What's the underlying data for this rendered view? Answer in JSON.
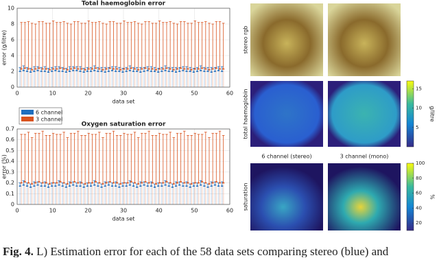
{
  "chart_data": [
    {
      "type": "errorbar",
      "title": "Total haemoglobin error",
      "x_label": "data set",
      "y_label": "error (g/litre)",
      "x": [
        1,
        2,
        3,
        4,
        5,
        6,
        7,
        8,
        9,
        10,
        11,
        12,
        13,
        14,
        15,
        16,
        17,
        18,
        19,
        20,
        21,
        22,
        23,
        24,
        25,
        26,
        27,
        28,
        29,
        30,
        31,
        32,
        33,
        34,
        35,
        36,
        37,
        38,
        39,
        40,
        41,
        42,
        43,
        44,
        45,
        46,
        47,
        48,
        49,
        50,
        51,
        52,
        53,
        54,
        55,
        56,
        57,
        58
      ],
      "xlim": [
        0,
        60
      ],
      "xticks": [
        0,
        10,
        20,
        30,
        40,
        50,
        60
      ],
      "ylim": [
        0,
        10
      ],
      "yticks": [
        0,
        2,
        4,
        6,
        8,
        10
      ],
      "grid": true,
      "legend": "below",
      "series": [
        {
          "name": "6 channel",
          "color": "#1f6fbf",
          "values": [
            2.0,
            2.1,
            2.0,
            1.9,
            2.0,
            2.1,
            2.0,
            2.0,
            1.9,
            2.0,
            2.1,
            2.0,
            2.0,
            1.9,
            2.0,
            2.1,
            2.1,
            2.0,
            1.9,
            2.0,
            2.0,
            2.1,
            2.0,
            2.0,
            1.9,
            2.0,
            2.1,
            2.0,
            2.0,
            1.9,
            2.0,
            2.1,
            2.0,
            2.0,
            1.9,
            2.0,
            2.1,
            2.0,
            2.0,
            1.9,
            2.0,
            2.1,
            2.0,
            2.0,
            1.9,
            2.0,
            2.1,
            2.0,
            2.0,
            1.9,
            2.0,
            2.1,
            2.0,
            2.0,
            1.9,
            2.0,
            2.1,
            2.0
          ],
          "errors": [
            0.5,
            0.6,
            0.5,
            0.5,
            0.6,
            0.5,
            0.5,
            0.6,
            0.5,
            0.5,
            0.5,
            0.6,
            0.5,
            0.5,
            0.6,
            0.5,
            0.5,
            0.6,
            0.5,
            0.5,
            0.5,
            0.6,
            0.5,
            0.5,
            0.6,
            0.5,
            0.5,
            0.6,
            0.5,
            0.5,
            0.5,
            0.6,
            0.5,
            0.5,
            0.6,
            0.5,
            0.5,
            0.6,
            0.5,
            0.5,
            0.5,
            0.6,
            0.5,
            0.5,
            0.6,
            0.5,
            0.5,
            0.6,
            0.5,
            0.5,
            0.5,
            0.6,
            0.5,
            0.5,
            0.6,
            0.5,
            0.5,
            0.6
          ]
        },
        {
          "name": "3 channel",
          "color": "#d9531e",
          "values": [
            2.3,
            2.4,
            2.3,
            2.2,
            2.3,
            2.4,
            2.3,
            2.3,
            2.2,
            2.3,
            2.3,
            2.4,
            2.3,
            2.2,
            2.3,
            2.4,
            2.3,
            2.3,
            2.2,
            2.3,
            2.3,
            2.4,
            2.3,
            2.2,
            2.3,
            2.4,
            2.3,
            2.3,
            2.2,
            2.3,
            2.3,
            2.4,
            2.3,
            2.2,
            2.3,
            2.4,
            2.3,
            2.3,
            2.2,
            2.3,
            2.3,
            2.4,
            2.3,
            2.2,
            2.3,
            2.4,
            2.3,
            2.3,
            2.2,
            2.3,
            2.3,
            2.4,
            2.3,
            2.2,
            2.3,
            2.4,
            2.3,
            2.3
          ],
          "errors": [
            5.9,
            5.8,
            6.0,
            5.9,
            5.7,
            5.9,
            6.0,
            5.8,
            5.9,
            6.1,
            5.9,
            5.8,
            6.0,
            5.9,
            5.7,
            5.9,
            6.0,
            5.8,
            5.9,
            6.1,
            5.9,
            5.8,
            6.0,
            5.9,
            5.7,
            5.9,
            6.0,
            5.8,
            5.9,
            6.1,
            5.9,
            5.8,
            6.0,
            5.9,
            5.7,
            5.9,
            6.0,
            5.8,
            5.9,
            6.1,
            5.9,
            5.8,
            6.0,
            5.9,
            5.7,
            5.9,
            6.0,
            5.8,
            5.9,
            6.1,
            5.9,
            5.8,
            6.0,
            5.9,
            5.7,
            5.9,
            6.0,
            5.8
          ]
        }
      ]
    },
    {
      "type": "errorbar",
      "title": "Oxygen saturation error",
      "x_label": "data set",
      "y_label": "error (%)",
      "x": [
        1,
        2,
        3,
        4,
        5,
        6,
        7,
        8,
        9,
        10,
        11,
        12,
        13,
        14,
        15,
        16,
        17,
        18,
        19,
        20,
        21,
        22,
        23,
        24,
        25,
        26,
        27,
        28,
        29,
        30,
        31,
        32,
        33,
        34,
        35,
        36,
        37,
        38,
        39,
        40,
        41,
        42,
        43,
        44,
        45,
        46,
        47,
        48,
        49,
        50,
        51,
        52,
        53,
        54,
        55,
        56,
        57,
        58
      ],
      "xlim": [
        0,
        60
      ],
      "xticks": [
        0,
        10,
        20,
        30,
        40,
        50,
        60
      ],
      "ylim": [
        0,
        0.7
      ],
      "yticks": [
        0,
        0.1,
        0.2,
        0.3,
        0.4,
        0.5,
        0.6,
        0.7
      ],
      "grid": true,
      "series": [
        {
          "color": "#1f6fbf",
          "values": [
            0.17,
            0.18,
            0.17,
            0.16,
            0.17,
            0.18,
            0.17,
            0.17,
            0.16,
            0.17,
            0.17,
            0.18,
            0.17,
            0.16,
            0.17,
            0.18,
            0.17,
            0.17,
            0.16,
            0.17,
            0.17,
            0.18,
            0.17,
            0.16,
            0.17,
            0.18,
            0.17,
            0.17,
            0.16,
            0.17,
            0.17,
            0.18,
            0.17,
            0.16,
            0.17,
            0.18,
            0.17,
            0.17,
            0.16,
            0.17,
            0.17,
            0.18,
            0.17,
            0.16,
            0.17,
            0.18,
            0.17,
            0.17,
            0.16,
            0.17,
            0.17,
            0.18,
            0.17,
            0.16,
            0.17,
            0.18,
            0.17,
            0.17
          ],
          "errors": [
            0.03,
            0.04,
            0.03,
            0.03,
            0.04,
            0.03,
            0.03,
            0.04,
            0.03,
            0.03,
            0.03,
            0.04,
            0.03,
            0.03,
            0.04,
            0.03,
            0.03,
            0.04,
            0.03,
            0.03,
            0.03,
            0.04,
            0.03,
            0.03,
            0.04,
            0.03,
            0.03,
            0.04,
            0.03,
            0.03,
            0.03,
            0.04,
            0.03,
            0.03,
            0.04,
            0.03,
            0.03,
            0.04,
            0.03,
            0.03,
            0.03,
            0.04,
            0.03,
            0.03,
            0.04,
            0.03,
            0.03,
            0.04,
            0.03,
            0.03,
            0.03,
            0.04,
            0.03,
            0.03,
            0.04,
            0.03,
            0.03,
            0.04
          ]
        },
        {
          "color": "#d9531e",
          "values": [
            0.2,
            0.21,
            0.2,
            0.19,
            0.2,
            0.21,
            0.2,
            0.2,
            0.19,
            0.2,
            0.2,
            0.21,
            0.2,
            0.19,
            0.2,
            0.21,
            0.2,
            0.2,
            0.19,
            0.2,
            0.2,
            0.21,
            0.2,
            0.19,
            0.2,
            0.21,
            0.2,
            0.2,
            0.19,
            0.2,
            0.2,
            0.21,
            0.2,
            0.19,
            0.2,
            0.21,
            0.2,
            0.2,
            0.19,
            0.2,
            0.2,
            0.21,
            0.2,
            0.19,
            0.2,
            0.21,
            0.2,
            0.2,
            0.19,
            0.2,
            0.2,
            0.21,
            0.2,
            0.19,
            0.2,
            0.21,
            0.2,
            0.2
          ],
          "errors": [
            0.45,
            0.44,
            0.47,
            0.43,
            0.46,
            0.45,
            0.48,
            0.44,
            0.45,
            0.46,
            0.45,
            0.44,
            0.47,
            0.43,
            0.46,
            0.45,
            0.48,
            0.44,
            0.45,
            0.46,
            0.45,
            0.44,
            0.47,
            0.43,
            0.46,
            0.45,
            0.48,
            0.44,
            0.45,
            0.46,
            0.45,
            0.44,
            0.47,
            0.43,
            0.46,
            0.45,
            0.48,
            0.44,
            0.45,
            0.46,
            0.45,
            0.44,
            0.47,
            0.43,
            0.46,
            0.45,
            0.48,
            0.44,
            0.45,
            0.46,
            0.45,
            0.44,
            0.47,
            0.43,
            0.46,
            0.45,
            0.48,
            0.44
          ]
        }
      ]
    }
  ],
  "images": {
    "row_labels": [
      "stereo rgb",
      "total haemoglobin",
      "saturation"
    ],
    "column_labels": [
      "6 channel (stereo)",
      "3 channel (mono)"
    ],
    "colorbars": [
      {
        "label": "g/litre",
        "lim": [
          0,
          17
        ],
        "ticks": [
          5,
          10,
          15
        ]
      },
      {
        "label": "%",
        "lim": [
          10,
          100
        ],
        "ticks": [
          20,
          40,
          60,
          80,
          100
        ]
      }
    ]
  },
  "caption": {
    "label": "Fig. 4.",
    "text": "L) Estimation error for each of the 58 data sets comparing stereo (blue) and"
  }
}
